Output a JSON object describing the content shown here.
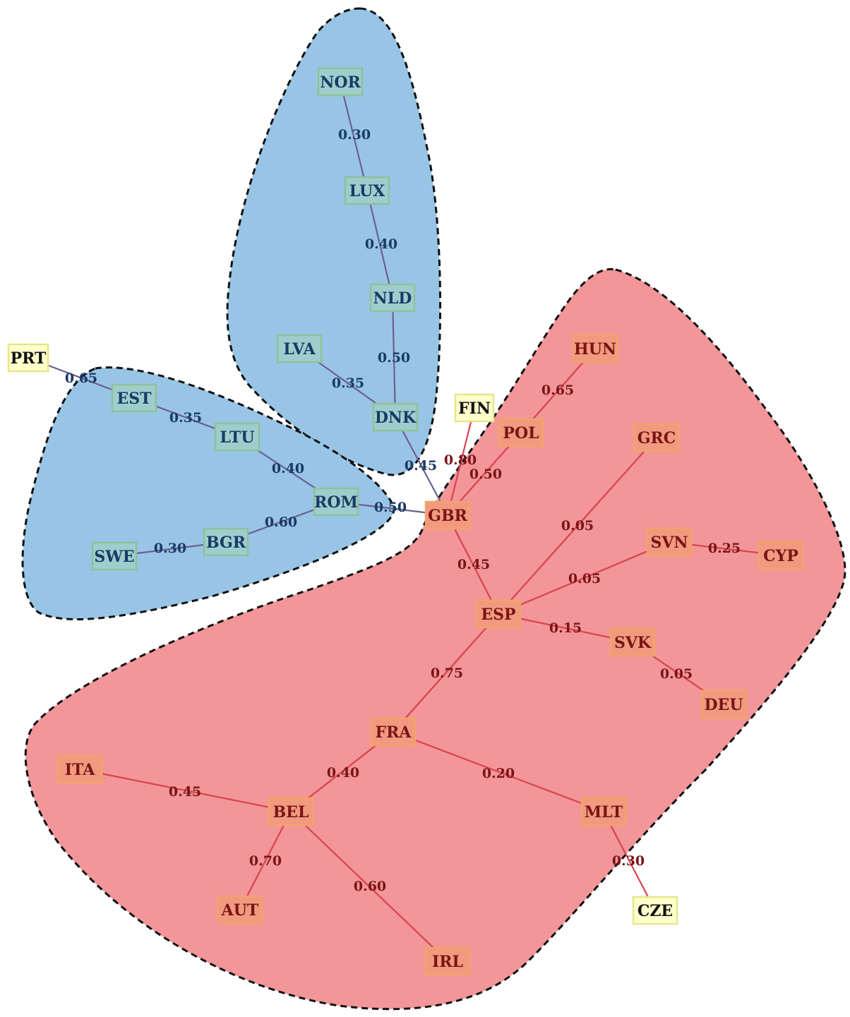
{
  "colors": {
    "blue_region": "#98c5e6",
    "red_region": "#f29699",
    "blue_node_fill": "#9fcdcd",
    "blue_node_stroke": "#8ec19a",
    "blue_text": "#1a3a66",
    "blue_edge": "#6d5f8f",
    "red_node_fill": "#f29a80",
    "red_node_stroke": "#f4a36a",
    "red_text": "#7a1416",
    "red_edge": "#d9424e",
    "yellow_node_fill": "#ffffcc",
    "yellow_node_stroke": "#e6e68c",
    "yellow_text": "#111111",
    "outline": "#111111"
  },
  "clusters": [
    {
      "id": "north",
      "color": "blue"
    },
    {
      "id": "baltic",
      "color": "blue"
    },
    {
      "id": "core",
      "color": "red"
    }
  ],
  "nodes": [
    {
      "id": "NOR",
      "label": "NOR",
      "group": "blue"
    },
    {
      "id": "LUX",
      "label": "LUX",
      "group": "blue"
    },
    {
      "id": "NLD",
      "label": "NLD",
      "group": "blue"
    },
    {
      "id": "LVA",
      "label": "LVA",
      "group": "blue"
    },
    {
      "id": "DNK",
      "label": "DNK",
      "group": "blue"
    },
    {
      "id": "PRT",
      "label": "PRT",
      "group": "yellow"
    },
    {
      "id": "EST",
      "label": "EST",
      "group": "blue"
    },
    {
      "id": "LTU",
      "label": "LTU",
      "group": "blue"
    },
    {
      "id": "ROM",
      "label": "ROM",
      "group": "blue"
    },
    {
      "id": "BGR",
      "label": "BGR",
      "group": "blue"
    },
    {
      "id": "SWE",
      "label": "SWE",
      "group": "blue"
    },
    {
      "id": "FIN",
      "label": "FIN",
      "group": "yellow"
    },
    {
      "id": "HUN",
      "label": "HUN",
      "group": "red"
    },
    {
      "id": "POL",
      "label": "POL",
      "group": "red"
    },
    {
      "id": "GRC",
      "label": "GRC",
      "group": "red"
    },
    {
      "id": "GBR",
      "label": "GBR",
      "group": "red"
    },
    {
      "id": "SVN",
      "label": "SVN",
      "group": "red"
    },
    {
      "id": "CYP",
      "label": "CYP",
      "group": "red"
    },
    {
      "id": "ESP",
      "label": "ESP",
      "group": "red"
    },
    {
      "id": "SVK",
      "label": "SVK",
      "group": "red"
    },
    {
      "id": "DEU",
      "label": "DEU",
      "group": "red"
    },
    {
      "id": "FRA",
      "label": "FRA",
      "group": "red"
    },
    {
      "id": "ITA",
      "label": "ITA",
      "group": "red"
    },
    {
      "id": "BEL",
      "label": "BEL",
      "group": "red"
    },
    {
      "id": "MLT",
      "label": "MLT",
      "group": "red"
    },
    {
      "id": "AUT",
      "label": "AUT",
      "group": "red"
    },
    {
      "id": "IRL",
      "label": "IRL",
      "group": "red"
    },
    {
      "id": "CZE",
      "label": "CZE",
      "group": "yellow"
    }
  ],
  "edges": [
    {
      "source": "NOR",
      "target": "LUX",
      "weight": "0.30",
      "group": "blue"
    },
    {
      "source": "LUX",
      "target": "NLD",
      "weight": "0.40",
      "group": "blue"
    },
    {
      "source": "NLD",
      "target": "DNK",
      "weight": "0.50",
      "group": "blue"
    },
    {
      "source": "LVA",
      "target": "DNK",
      "weight": "0.35",
      "group": "blue"
    },
    {
      "source": "DNK",
      "target": "GBR",
      "weight": "0.45",
      "group": "blue"
    },
    {
      "source": "PRT",
      "target": "EST",
      "weight": "0.65",
      "group": "blue"
    },
    {
      "source": "EST",
      "target": "LTU",
      "weight": "0.35",
      "group": "blue"
    },
    {
      "source": "LTU",
      "target": "ROM",
      "weight": "0.40",
      "group": "blue"
    },
    {
      "source": "ROM",
      "target": "GBR",
      "weight": "0.50",
      "group": "blue"
    },
    {
      "source": "ROM",
      "target": "BGR",
      "weight": "0.60",
      "group": "blue"
    },
    {
      "source": "BGR",
      "target": "SWE",
      "weight": "0.30",
      "group": "blue"
    },
    {
      "source": "FIN",
      "target": "GBR",
      "weight": "0.80",
      "group": "red"
    },
    {
      "source": "HUN",
      "target": "POL",
      "weight": "0.65",
      "group": "red"
    },
    {
      "source": "POL",
      "target": "GBR",
      "weight": "0.50",
      "group": "red"
    },
    {
      "source": "GBR",
      "target": "ESP",
      "weight": "0.45",
      "group": "red"
    },
    {
      "source": "GRC",
      "target": "ESP",
      "weight": "0.05",
      "group": "red"
    },
    {
      "source": "SVN",
      "target": "ESP",
      "weight": "0.05",
      "group": "red"
    },
    {
      "source": "SVN",
      "target": "CYP",
      "weight": "0.25",
      "group": "red"
    },
    {
      "source": "ESP",
      "target": "SVK",
      "weight": "0.15",
      "group": "red"
    },
    {
      "source": "SVK",
      "target": "DEU",
      "weight": "0.05",
      "group": "red"
    },
    {
      "source": "ESP",
      "target": "FRA",
      "weight": "0.75",
      "group": "red"
    },
    {
      "source": "FRA",
      "target": "BEL",
      "weight": "0.40",
      "group": "red"
    },
    {
      "source": "FRA",
      "target": "MLT",
      "weight": "0.20",
      "group": "red"
    },
    {
      "source": "ITA",
      "target": "BEL",
      "weight": "0.45",
      "group": "red"
    },
    {
      "source": "BEL",
      "target": "AUT",
      "weight": "0.70",
      "group": "red"
    },
    {
      "source": "BEL",
      "target": "IRL",
      "weight": "0.60",
      "group": "red"
    },
    {
      "source": "MLT",
      "target": "CZE",
      "weight": "0.30",
      "group": "red"
    }
  ]
}
